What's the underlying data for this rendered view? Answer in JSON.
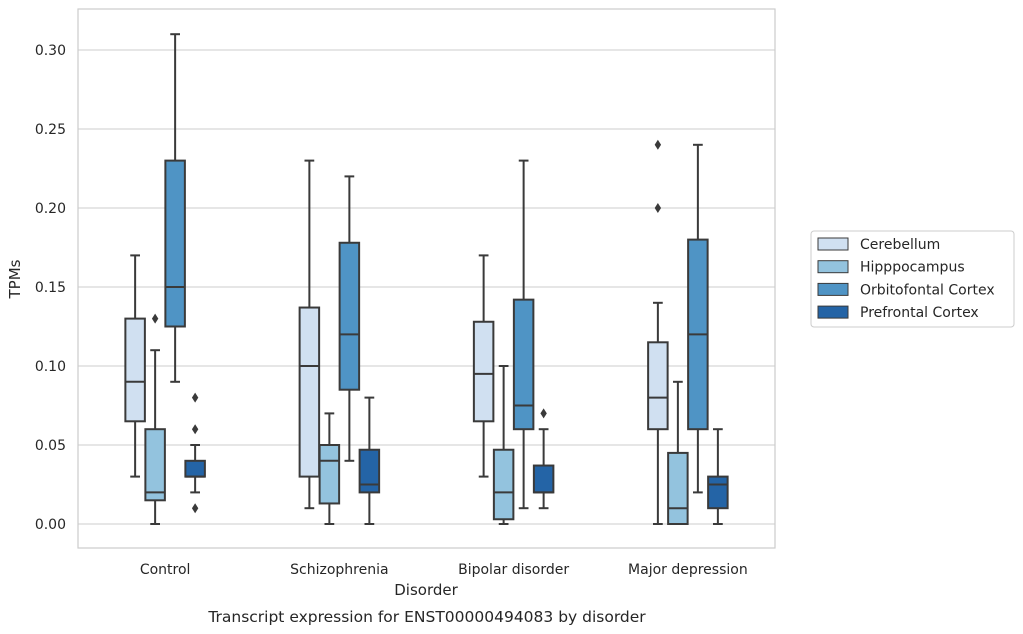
{
  "chart_data": {
    "type": "box",
    "caption": "Transcript expression for ENST00000494083 by disorder",
    "xlabel": "Disorder",
    "ylabel": "TPMs",
    "ylim": [
      -0.015,
      0.325
    ],
    "yticks": [
      "0.00",
      "0.05",
      "0.10",
      "0.15",
      "0.20",
      "0.25",
      "0.30"
    ],
    "grid": true,
    "legend_position": "right",
    "categories": [
      "Control",
      "Schizophrenia",
      "Bipolar disorder",
      "Major depression"
    ],
    "series": [
      {
        "name": "Cerebellum",
        "color": "#d0e0f1",
        "boxes": [
          {
            "whislo": 0.03,
            "q1": 0.065,
            "med": 0.09,
            "q3": 0.13,
            "whishi": 0.17,
            "fliers": []
          },
          {
            "whislo": 0.01,
            "q1": 0.03,
            "med": 0.1,
            "q3": 0.137,
            "whishi": 0.23,
            "fliers": []
          },
          {
            "whislo": 0.03,
            "q1": 0.065,
            "med": 0.095,
            "q3": 0.128,
            "whishi": 0.17,
            "fliers": []
          },
          {
            "whislo": 0.0,
            "q1": 0.06,
            "med": 0.08,
            "q3": 0.115,
            "whishi": 0.14,
            "fliers": [
              0.2,
              0.24
            ]
          }
        ]
      },
      {
        "name": "Hipppocampus",
        "color": "#93c3de",
        "boxes": [
          {
            "whislo": 0.0,
            "q1": 0.015,
            "med": 0.02,
            "q3": 0.06,
            "whishi": 0.11,
            "fliers": [
              0.13
            ]
          },
          {
            "whislo": 0.0,
            "q1": 0.013,
            "med": 0.04,
            "q3": 0.05,
            "whishi": 0.07,
            "fliers": []
          },
          {
            "whislo": 0.0,
            "q1": 0.003,
            "med": 0.02,
            "q3": 0.047,
            "whishi": 0.1,
            "fliers": []
          },
          {
            "whislo": 0.0,
            "q1": 0.0,
            "med": 0.01,
            "q3": 0.045,
            "whishi": 0.09,
            "fliers": []
          }
        ]
      },
      {
        "name": "Orbitofontal Cortex",
        "color": "#4f94c5",
        "boxes": [
          {
            "whislo": 0.09,
            "q1": 0.125,
            "med": 0.15,
            "q3": 0.23,
            "whishi": 0.31,
            "fliers": []
          },
          {
            "whislo": 0.04,
            "q1": 0.085,
            "med": 0.12,
            "q3": 0.178,
            "whishi": 0.22,
            "fliers": []
          },
          {
            "whislo": 0.01,
            "q1": 0.06,
            "med": 0.075,
            "q3": 0.142,
            "whishi": 0.23,
            "fliers": []
          },
          {
            "whislo": 0.02,
            "q1": 0.06,
            "med": 0.12,
            "q3": 0.18,
            "whishi": 0.24,
            "fliers": []
          }
        ]
      },
      {
        "name": "Prefrontal Cortex",
        "color": "#2464a6",
        "boxes": [
          {
            "whislo": 0.02,
            "q1": 0.03,
            "med": 0.03,
            "q3": 0.04,
            "whishi": 0.05,
            "fliers": [
              0.01,
              0.06,
              0.08
            ]
          },
          {
            "whislo": 0.0,
            "q1": 0.02,
            "med": 0.025,
            "q3": 0.047,
            "whishi": 0.08,
            "fliers": []
          },
          {
            "whislo": 0.01,
            "q1": 0.02,
            "med": 0.02,
            "q3": 0.037,
            "whishi": 0.06,
            "fliers": [
              0.07
            ]
          },
          {
            "whislo": 0.0,
            "q1": 0.01,
            "med": 0.025,
            "q3": 0.03,
            "whishi": 0.06,
            "fliers": []
          }
        ]
      }
    ]
  }
}
